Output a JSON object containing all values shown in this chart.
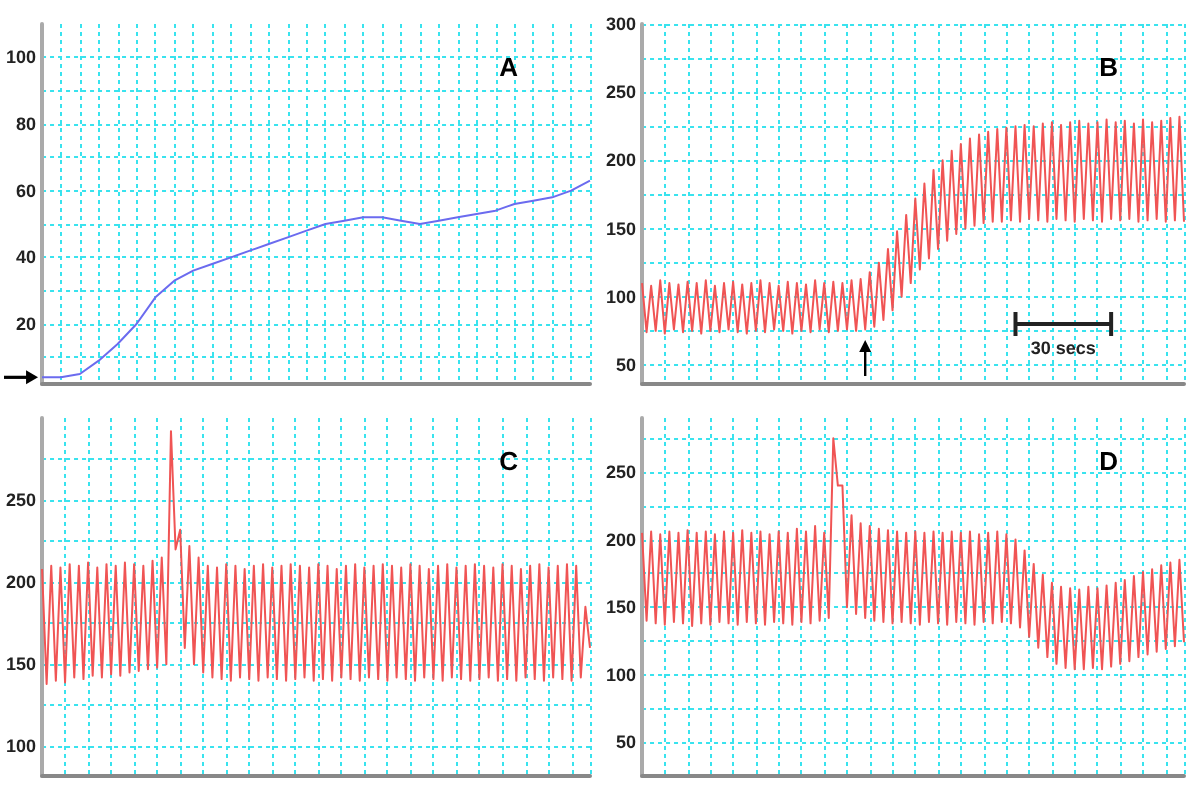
{
  "chart_data": [
    {
      "type": "line",
      "title": "A",
      "color": "#6b6bef",
      "ylim": [
        2,
        110
      ],
      "tick_labels": "y",
      "grid": true,
      "yticks": [
        {
          "value": 10,
          "label": null
        },
        20,
        {
          "value": 30,
          "label": null
        },
        40,
        {
          "value": 50,
          "label": null
        },
        60,
        {
          "value": 70,
          "label": null
        },
        80,
        {
          "value": 90,
          "label": null
        },
        100
      ],
      "categories": [
        null,
        null,
        null,
        null,
        null,
        null,
        null,
        null,
        null,
        null,
        null,
        null,
        null,
        null,
        null,
        null,
        null,
        null,
        null,
        null,
        null,
        null,
        null,
        null,
        null,
        null,
        null,
        null,
        null,
        null
      ],
      "values": [
        4,
        4,
        5,
        9,
        14,
        20,
        28,
        33,
        36,
        38,
        40,
        42,
        44,
        46,
        48,
        50,
        51,
        52,
        52,
        51,
        50,
        51,
        52,
        53,
        54,
        56,
        57,
        58,
        60,
        63
      ]
    },
    {
      "type": "line",
      "title": "B",
      "color": "#f05454",
      "ylim": [
        36,
        300
      ],
      "tick_labels": "y",
      "grid": true,
      "annotations": [
        "30 secs"
      ],
      "yticks": [
        50,
        {
          "value": 75,
          "label": null
        },
        100,
        {
          "value": 125,
          "label": null
        },
        150,
        {
          "value": 175,
          "label": null
        },
        200,
        {
          "value": 225,
          "label": null
        },
        250,
        {
          "value": 275,
          "label": null
        },
        300
      ],
      "categories": [
        null,
        null,
        null,
        null,
        null,
        null,
        null,
        null,
        null,
        null,
        null,
        null,
        null,
        null,
        null,
        null,
        null,
        null,
        null,
        null,
        null,
        null,
        null,
        null,
        null,
        null,
        null,
        null,
        null,
        null,
        null,
        null,
        null,
        null,
        null,
        null,
        null,
        null,
        null,
        null,
        null,
        null,
        null,
        null,
        null,
        null,
        null,
        null,
        null,
        null,
        null,
        null,
        null,
        null,
        null,
        null,
        null,
        null,
        null,
        null,
        null,
        null,
        null,
        null,
        null,
        null,
        null,
        null,
        null,
        null,
        null,
        null,
        null,
        null,
        null,
        null,
        null,
        null,
        null,
        null,
        null,
        null,
        null,
        null,
        null,
        null,
        null,
        null,
        null,
        null,
        null,
        null,
        null,
        null,
        null,
        null,
        null,
        null,
        null,
        null,
        null,
        null,
        null,
        null,
        null,
        null,
        null,
        null,
        null,
        null,
        null,
        null,
        null,
        null,
        null,
        null,
        null,
        null,
        null,
        null
      ],
      "values": [
        110,
        74,
        108,
        75,
        112,
        73,
        110,
        76,
        109,
        74,
        111,
        75,
        110,
        73,
        112,
        75,
        108,
        74,
        110,
        76,
        111,
        74,
        109,
        73,
        110,
        75,
        112,
        74,
        110,
        76,
        108,
        75,
        111,
        73,
        110,
        75,
        109,
        74,
        112,
        76,
        110,
        74,
        111,
        75,
        110,
        76,
        112,
        75,
        113,
        76,
        118,
        78,
        125,
        83,
        135,
        90,
        148,
        100,
        160,
        110,
        172,
        120,
        183,
        128,
        193,
        135,
        200,
        141,
        207,
        146,
        212,
        150,
        216,
        152,
        219,
        154,
        221,
        155,
        223,
        155,
        224,
        156,
        225,
        155,
        226,
        157,
        225,
        156,
        227,
        155,
        228,
        157,
        226,
        156,
        228,
        155,
        229,
        157,
        227,
        156,
        228,
        155,
        230,
        157,
        228,
        156,
        229,
        157,
        227,
        155,
        230,
        156,
        228,
        157,
        229,
        155,
        231,
        156,
        232,
        155
      ]
    },
    {
      "type": "line",
      "title": "C",
      "color": "#f05454",
      "ylim": [
        82,
        300
      ],
      "tick_labels": "y",
      "grid": true,
      "yticks": [
        100,
        {
          "value": 125,
          "label": null
        },
        150,
        {
          "value": 175,
          "label": null
        },
        200,
        {
          "value": 225,
          "label": null
        },
        250,
        {
          "value": 275,
          "label": null
        }
      ],
      "categories": [
        null,
        null,
        null,
        null,
        null,
        null,
        null,
        null,
        null,
        null,
        null,
        null,
        null,
        null,
        null,
        null,
        null,
        null,
        null,
        null,
        null,
        null,
        null,
        null,
        null,
        null,
        null,
        null,
        null,
        null,
        null,
        null,
        null,
        null,
        null,
        null,
        null,
        null,
        null,
        null,
        null,
        null,
        null,
        null,
        null,
        null,
        null,
        null,
        null,
        null,
        null,
        null,
        null,
        null,
        null,
        null,
        null,
        null,
        null,
        null,
        null,
        null,
        null,
        null,
        null,
        null,
        null,
        null,
        null,
        null,
        null,
        null,
        null,
        null,
        null,
        null,
        null,
        null,
        null,
        null,
        null,
        null,
        null,
        null,
        null,
        null,
        null,
        null,
        null,
        null,
        null,
        null,
        null,
        null,
        null,
        null,
        null,
        null,
        null,
        null,
        null,
        null,
        null,
        null,
        null,
        null,
        null,
        null,
        null,
        null,
        null,
        null,
        null,
        null,
        null,
        null,
        null,
        null,
        null,
        null
      ],
      "values": [
        208,
        138,
        210,
        140,
        209,
        139,
        211,
        142,
        210,
        141,
        212,
        143,
        209,
        142,
        211,
        144,
        210,
        143,
        212,
        145,
        211,
        146,
        210,
        147,
        213,
        148,
        215,
        150,
        292,
        220,
        232,
        160,
        222,
        150,
        215,
        145,
        210,
        142,
        209,
        141,
        211,
        140,
        210,
        142,
        208,
        141,
        210,
        140,
        211,
        142,
        209,
        141,
        210,
        140,
        211,
        141,
        210,
        142,
        209,
        140,
        211,
        141,
        210,
        140,
        208,
        142,
        210,
        141,
        211,
        140,
        209,
        142,
        210,
        141,
        211,
        140,
        210,
        142,
        209,
        141,
        211,
        140,
        210,
        142,
        208,
        141,
        210,
        140,
        211,
        142,
        209,
        141,
        210,
        140,
        211,
        141,
        210,
        142,
        209,
        140,
        211,
        141,
        210,
        140,
        208,
        142,
        210,
        141,
        211,
        140,
        209,
        142,
        210,
        141,
        211,
        140,
        210,
        142,
        185,
        160
      ]
    },
    {
      "type": "line",
      "title": "D",
      "color": "#f05454",
      "ylim": [
        25,
        290
      ],
      "tick_labels": "y",
      "grid": true,
      "yticks": [
        50,
        {
          "value": 75,
          "label": null
        },
        100,
        {
          "value": 125,
          "label": null
        },
        150,
        {
          "value": 175,
          "label": null
        },
        200,
        {
          "value": 225,
          "label": null
        },
        250,
        {
          "value": 275,
          "label": null
        }
      ],
      "categories": [
        null,
        null,
        null,
        null,
        null,
        null,
        null,
        null,
        null,
        null,
        null,
        null,
        null,
        null,
        null,
        null,
        null,
        null,
        null,
        null,
        null,
        null,
        null,
        null,
        null,
        null,
        null,
        null,
        null,
        null,
        null,
        null,
        null,
        null,
        null,
        null,
        null,
        null,
        null,
        null,
        null,
        null,
        null,
        null,
        null,
        null,
        null,
        null,
        null,
        null,
        null,
        null,
        null,
        null,
        null,
        null,
        null,
        null,
        null,
        null,
        null,
        null,
        null,
        null,
        null,
        null,
        null,
        null,
        null,
        null,
        null,
        null,
        null,
        null,
        null,
        null,
        null,
        null,
        null,
        null,
        null,
        null,
        null,
        null,
        null,
        null,
        null,
        null,
        null,
        null,
        null,
        null,
        null,
        null,
        null,
        null,
        null,
        null,
        null,
        null,
        null,
        null,
        null,
        null,
        null,
        null,
        null,
        null,
        null,
        null,
        null,
        null,
        null,
        null,
        null,
        null,
        null,
        null,
        null,
        null
      ],
      "values": [
        205,
        140,
        206,
        138,
        204,
        137,
        206,
        139,
        205,
        138,
        207,
        136,
        205,
        138,
        206,
        137,
        204,
        139,
        206,
        138,
        205,
        137,
        207,
        139,
        205,
        138,
        206,
        137,
        204,
        139,
        206,
        138,
        205,
        137,
        208,
        139,
        206,
        138,
        210,
        140,
        205,
        142,
        275,
        240,
        240,
        150,
        218,
        145,
        212,
        142,
        210,
        140,
        208,
        139,
        207,
        138,
        206,
        139,
        205,
        138,
        206,
        137,
        205,
        139,
        206,
        138,
        205,
        137,
        206,
        139,
        205,
        138,
        206,
        137,
        204,
        139,
        205,
        138,
        206,
        139,
        204,
        138,
        200,
        135,
        192,
        128,
        182,
        120,
        174,
        113,
        168,
        108,
        165,
        105,
        164,
        104,
        163,
        104,
        165,
        105,
        164,
        104,
        166,
        106,
        168,
        108,
        170,
        110,
        173,
        113,
        176,
        115,
        178,
        117,
        181,
        119,
        183,
        121,
        185,
        124
      ]
    }
  ]
}
